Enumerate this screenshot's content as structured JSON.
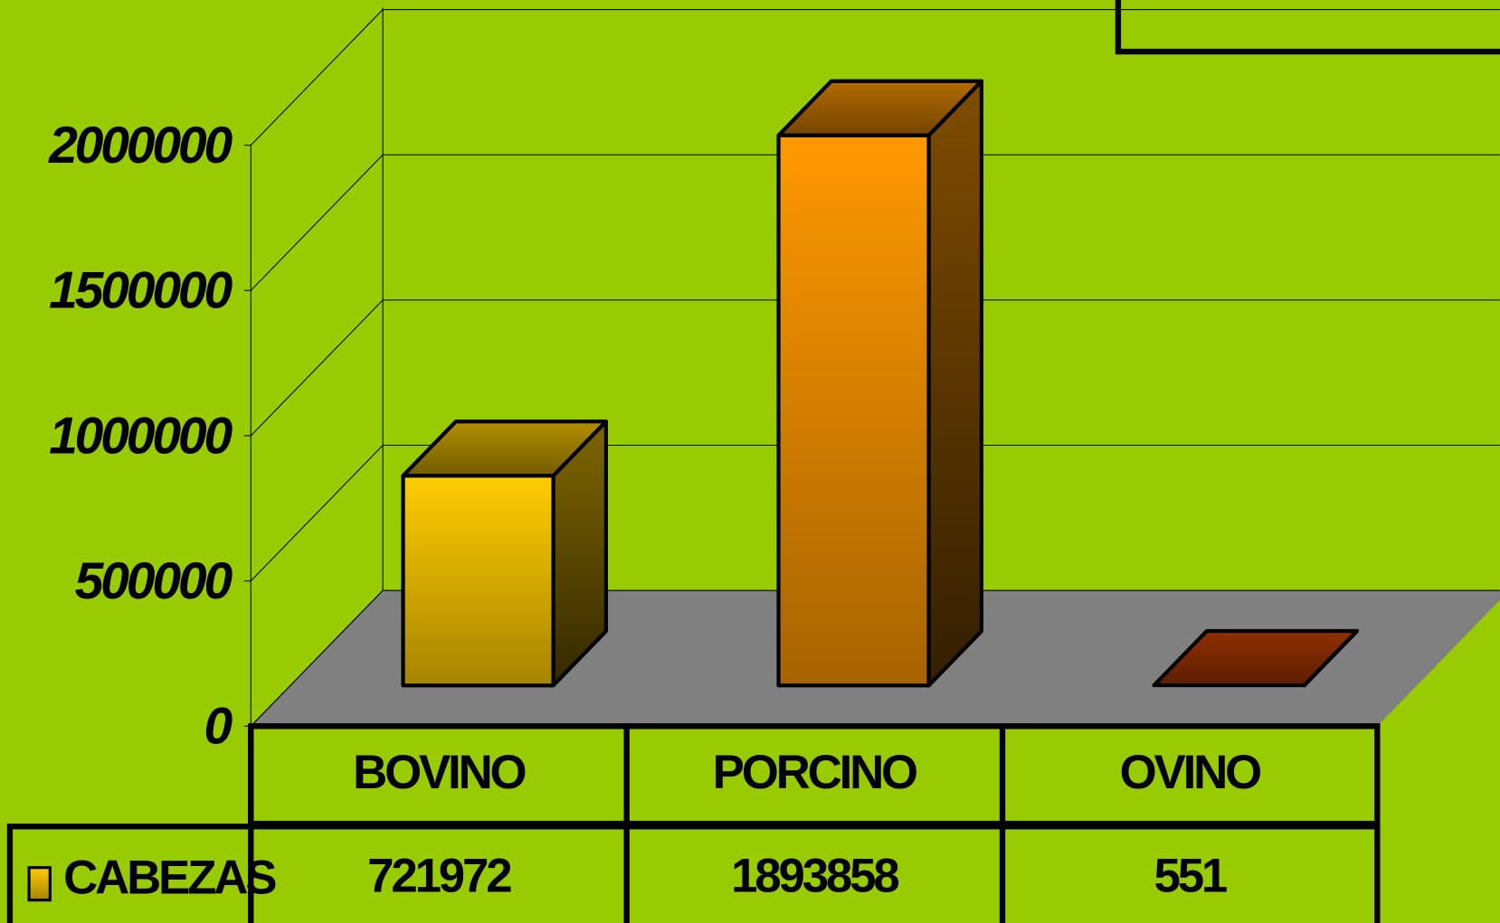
{
  "chart_data": {
    "type": "bar3d",
    "categories": [
      "BOVINO",
      "PORCINO",
      "OVINO"
    ],
    "series": [
      {
        "name": "CABEZAS",
        "colors": [
          "#ffcc00",
          "#ff9900",
          "#cc4400"
        ],
        "values": [
          721972,
          1893858,
          551
        ]
      }
    ],
    "ylim": [
      0,
      2000000
    ],
    "yticks": [
      0,
      500000,
      1000000,
      1500000,
      2000000
    ],
    "grid": true,
    "data_table": true
  }
}
